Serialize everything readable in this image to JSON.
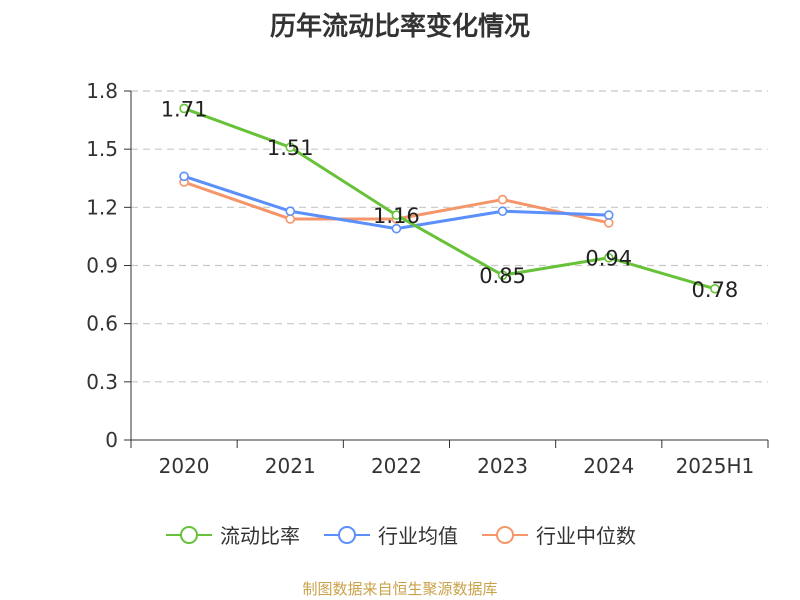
{
  "title": "历年流动比率变化情况",
  "source": "制图数据来自恒生聚源数据库",
  "chart_data": {
    "type": "line",
    "categories": [
      "2020",
      "2021",
      "2022",
      "2023",
      "2024",
      "2025H1"
    ],
    "yticks": [
      "0",
      "0.3",
      "0.6",
      "0.9",
      "1.2",
      "1.5",
      "1.8"
    ],
    "ylim": [
      0,
      1.8
    ],
    "grid": true,
    "legend_position": "bottom",
    "series": [
      {
        "name": "流动比率",
        "color": "#67c23a",
        "labels": true,
        "values": [
          1.71,
          1.51,
          1.16,
          0.85,
          0.94,
          0.78
        ],
        "value_labels": [
          "1.71",
          "1.51",
          "1.16",
          "0.85",
          "0.94",
          "0.78"
        ]
      },
      {
        "name": "行业均值",
        "color": "#5b8ff9",
        "values": [
          1.36,
          1.18,
          1.09,
          1.18,
          1.16,
          null
        ]
      },
      {
        "name": "行业中位数",
        "color": "#f4956a",
        "values": [
          1.33,
          1.14,
          1.14,
          1.24,
          1.12,
          null
        ]
      }
    ]
  }
}
